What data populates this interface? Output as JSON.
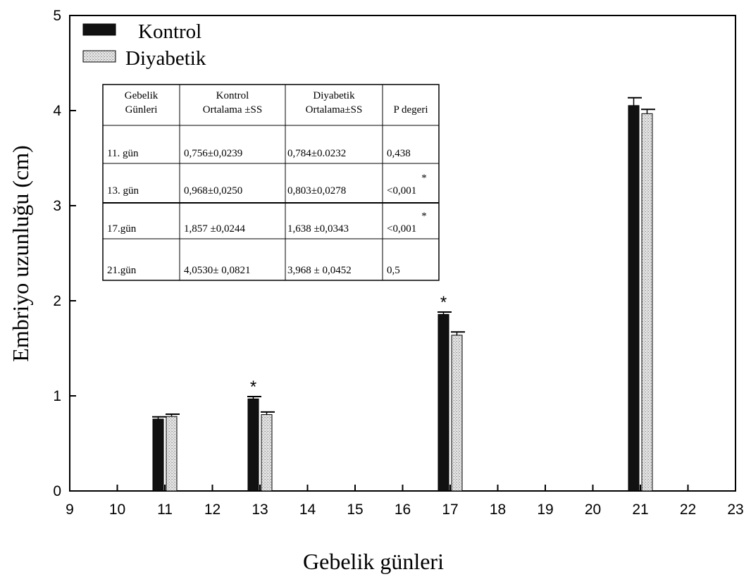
{
  "chart_data": {
    "type": "bar",
    "xlabel": "Gebelik günleri",
    "ylabel": "Embriyo uzunluğu (cm)",
    "xlim": [
      9,
      23
    ],
    "ylim": [
      0,
      5
    ],
    "x_ticks": [
      "9",
      "10",
      "11",
      "12",
      "13",
      "14",
      "15",
      "16",
      "17",
      "18",
      "19",
      "20",
      "21",
      "22",
      "23"
    ],
    "y_ticks": [
      "0",
      "1",
      "2",
      "3",
      "4",
      "5"
    ],
    "grid": false,
    "legend_position": "top-left",
    "x": [
      11,
      13,
      17,
      21
    ],
    "series": [
      {
        "name": "Kontrol",
        "color": "#111111",
        "pattern": "solid",
        "values": [
          0.756,
          0.968,
          1.857,
          4.053
        ],
        "errors": [
          0.0239,
          0.025,
          0.0244,
          0.0821
        ]
      },
      {
        "name": "Diyabetik",
        "color": "#d6d6d6",
        "pattern": "stipple",
        "values": [
          0.784,
          0.803,
          1.638,
          3.968
        ],
        "errors": [
          0.0232,
          0.0278,
          0.0343,
          0.0452
        ]
      }
    ],
    "annotations": [
      {
        "x": 13,
        "text": "*"
      },
      {
        "x": 17,
        "text": "*"
      }
    ],
    "inset_table": {
      "header": [
        [
          "Gebelik",
          "Günleri"
        ],
        [
          "Kontrol",
          "Ortalama ±SS"
        ],
        [
          "Diyabetik",
          "Ortalama±SS"
        ],
        [
          "",
          "P degeri"
        ]
      ],
      "rows": [
        {
          "day": "11. gün",
          "kontrol": "0,756±0,0239",
          "diyabetik": "0,784±0.0232",
          "mark": "",
          "p": "0,438"
        },
        {
          "day": "13. gün",
          "kontrol": "0,968±0,0250",
          "diyabetik": "0,803±0,0278",
          "mark": "*",
          "p": "<0,001"
        },
        {
          "day": "17.gün",
          "kontrol": "1,857 ±0,0244",
          "diyabetik": "1,638 ±0,0343",
          "mark": "*",
          "p": "<0,001"
        },
        {
          "day": "21.gün",
          "kontrol": "4,0530± 0,0821",
          "diyabetik": "3,968 ± 0,0452",
          "mark": "",
          "p": "0,5"
        }
      ]
    }
  }
}
